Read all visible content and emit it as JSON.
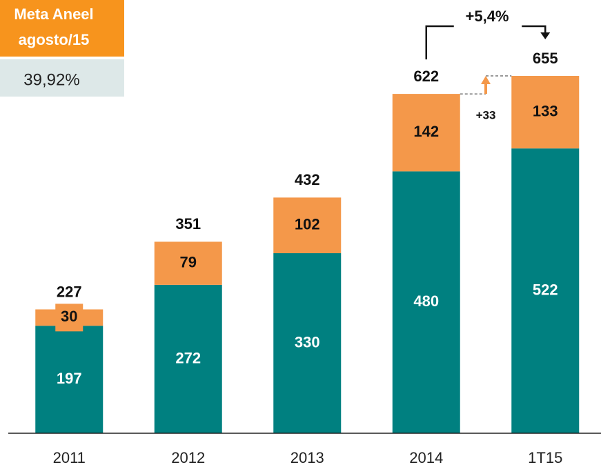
{
  "chart_data": {
    "type": "stacked_bar",
    "categories": [
      "2011",
      "2012",
      "2013",
      "2014",
      "1T15"
    ],
    "series": [
      {
        "color": "#008080",
        "values": [
          197,
          272,
          330,
          480,
          522
        ]
      },
      {
        "color": "#f4984a",
        "values": [
          30,
          79,
          102,
          142,
          133
        ]
      }
    ],
    "totals": [
      227,
      351,
      432,
      622,
      655
    ],
    "growth_label": "+5,4%",
    "delta_label": "+33",
    "target_box": {
      "title_lines": [
        "Meta Aneel",
        "agosto/15"
      ],
      "value": "39,92%"
    }
  }
}
